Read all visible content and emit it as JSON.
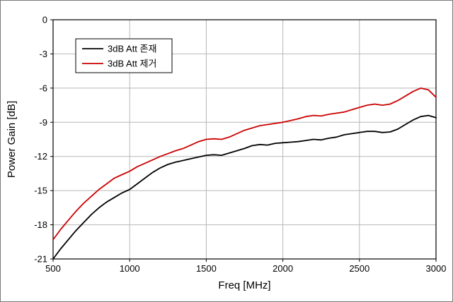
{
  "figure": {
    "background": "#ffffff",
    "frame_color": "#7a7a7a"
  },
  "chart_data": {
    "type": "line",
    "title": "",
    "xlabel": "Freq [MHz]",
    "ylabel": "Power Gain [dB]",
    "xlim": [
      500,
      3000
    ],
    "ylim": [
      -21,
      0
    ],
    "x_ticks": [
      500,
      1000,
      1500,
      2000,
      2500,
      3000
    ],
    "y_ticks": [
      0,
      -3,
      -6,
      -9,
      -12,
      -15,
      -18,
      -21
    ],
    "grid": true,
    "grid_color": "#b7b7b7",
    "axis_color": "#000000",
    "legend_position": "top-left-inside",
    "x": [
      500,
      550,
      600,
      650,
      700,
      750,
      800,
      850,
      900,
      950,
      1000,
      1050,
      1100,
      1150,
      1200,
      1250,
      1300,
      1350,
      1400,
      1450,
      1500,
      1550,
      1600,
      1650,
      1700,
      1750,
      1800,
      1850,
      1900,
      1950,
      2000,
      2050,
      2100,
      2150,
      2200,
      2250,
      2300,
      2350,
      2400,
      2450,
      2500,
      2550,
      2600,
      2650,
      2700,
      2750,
      2800,
      2850,
      2900,
      2950,
      3000
    ],
    "series": [
      {
        "name": "3dB Att 존재",
        "color": "#000000",
        "values": [
          -21.0,
          -20.1,
          -19.3,
          -18.5,
          -17.8,
          -17.1,
          -16.5,
          -16.0,
          -15.6,
          -15.2,
          -14.9,
          -14.4,
          -13.9,
          -13.4,
          -13.0,
          -12.7,
          -12.5,
          -12.35,
          -12.2,
          -12.05,
          -11.9,
          -11.85,
          -11.9,
          -11.7,
          -11.5,
          -11.3,
          -11.05,
          -10.95,
          -11.0,
          -10.85,
          -10.8,
          -10.75,
          -10.7,
          -10.6,
          -10.5,
          -10.55,
          -10.4,
          -10.3,
          -10.1,
          -10.0,
          -9.9,
          -9.8,
          -9.8,
          -9.9,
          -9.85,
          -9.6,
          -9.2,
          -8.8,
          -8.5,
          -8.4,
          -8.6
        ]
      },
      {
        "name": "3dB Att 제거",
        "color": "#cc0000",
        "values": [
          -19.3,
          -18.4,
          -17.6,
          -16.8,
          -16.1,
          -15.5,
          -14.9,
          -14.4,
          -13.9,
          -13.6,
          -13.3,
          -12.9,
          -12.6,
          -12.3,
          -12.0,
          -11.75,
          -11.5,
          -11.3,
          -11.0,
          -10.7,
          -10.5,
          -10.45,
          -10.5,
          -10.3,
          -10.0,
          -9.7,
          -9.5,
          -9.3,
          -9.2,
          -9.1,
          -9.0,
          -8.85,
          -8.7,
          -8.5,
          -8.4,
          -8.45,
          -8.3,
          -8.2,
          -8.1,
          -7.9,
          -7.7,
          -7.5,
          -7.4,
          -7.5,
          -7.4,
          -7.1,
          -6.7,
          -6.3,
          -6.0,
          -6.15,
          -6.8
        ]
      }
    ]
  }
}
